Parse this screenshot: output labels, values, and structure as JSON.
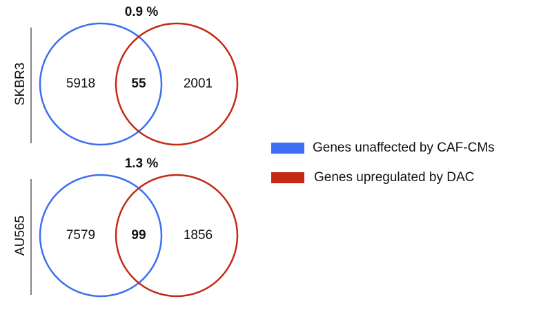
{
  "panels": [
    {
      "label": "SKBR3",
      "overlap_percent": "0.9 %",
      "left": 5918,
      "overlap": 55,
      "right": 2001
    },
    {
      "label": "AU565",
      "overlap_percent": "1.3 %",
      "left": 7579,
      "overlap": 99,
      "right": 1856
    }
  ],
  "legend": [
    {
      "label": "Genes unaffected by CAF-CMs",
      "color": "#3a6ff2"
    },
    {
      "label": "Genes upregulated by DAC",
      "color": "#c42a12"
    }
  ]
}
